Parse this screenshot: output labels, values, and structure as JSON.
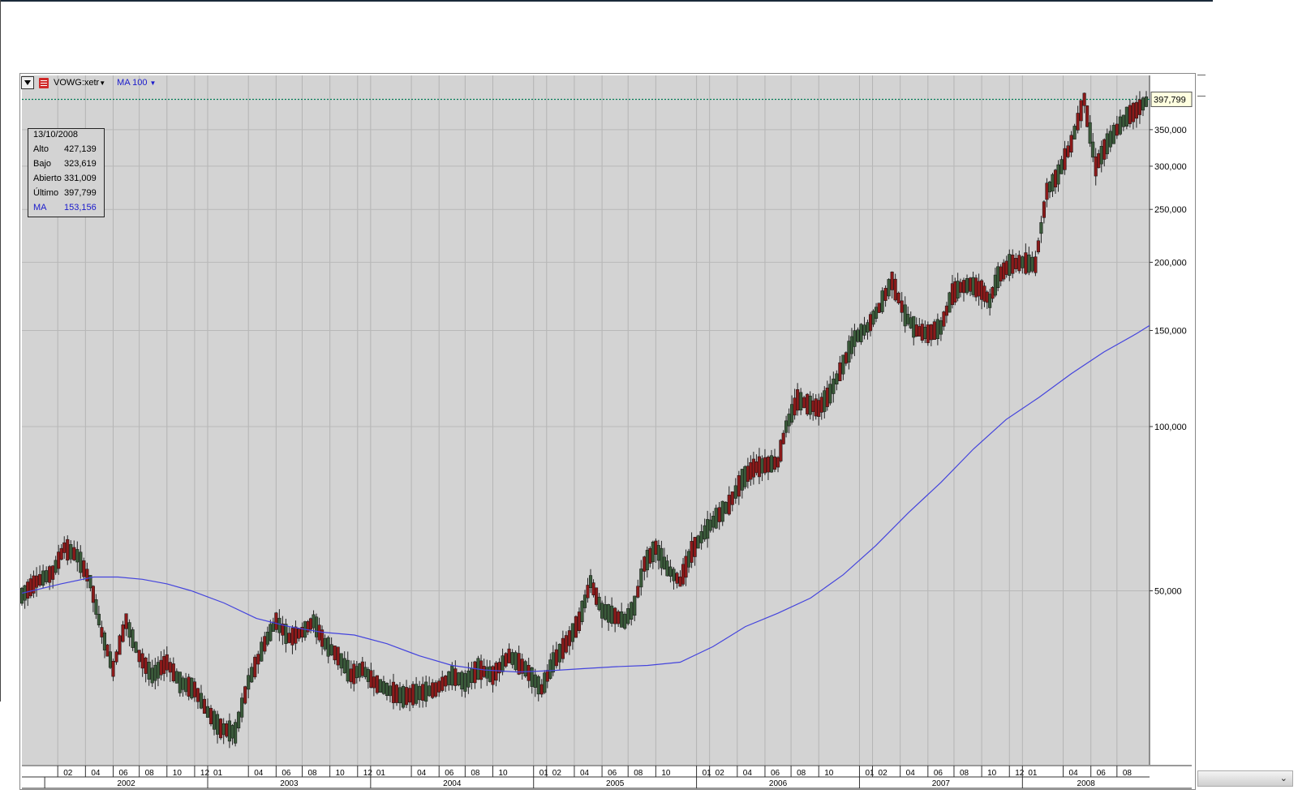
{
  "toolbar": {
    "ticker": "VOWG:xetr",
    "indicator": "MA 100",
    "dropdown_icon": "chevron-down-icon",
    "doc_icon": "document-icon"
  },
  "info": {
    "date": "13/10/2008",
    "rows": [
      {
        "label": "Alto",
        "value": "427,139"
      },
      {
        "label": "Bajo",
        "value": "323,619"
      },
      {
        "label": "Abierto",
        "value": "331,009"
      },
      {
        "label": "Último",
        "value": "397,799"
      },
      {
        "label": "MA",
        "value": "153,156"
      }
    ]
  },
  "colors": {
    "plot_bg": "#d3d3d3",
    "up_candle": "#2d4d2d",
    "down_candle": "#8b1a1a",
    "ma_line": "#4444dd",
    "last_line": "#007a55"
  },
  "chart_data": {
    "type": "line",
    "yscale": "log",
    "ylim": [
      24000,
      440000
    ],
    "y_ticks": [
      "50,000",
      "100,000",
      "150,000",
      "200,000",
      "250,000",
      "300,000",
      "350,000"
    ],
    "y_tick_values": [
      50000,
      100000,
      150000,
      200000,
      250000,
      300000,
      350000
    ],
    "last_value_label": "397,799",
    "last_value": 397799,
    "month_ticks": [
      "02",
      "04",
      "06",
      "08",
      "10",
      "12",
      "01",
      "04",
      "06",
      "08",
      "10",
      "12",
      "01",
      "04",
      "06",
      "08",
      "10",
      "01",
      "02",
      "04",
      "06",
      "08",
      "10",
      "01",
      "02",
      "04",
      "06",
      "08",
      "10",
      "01",
      "02",
      "04",
      "06",
      "08",
      "10",
      "12",
      "01",
      "04",
      "06",
      "08"
    ],
    "month_tick_dates": [
      2002.08,
      2002.25,
      2002.42,
      2002.58,
      2002.75,
      2002.92,
      2003.0,
      2003.25,
      2003.42,
      2003.58,
      2003.75,
      2003.92,
      2004.0,
      2004.25,
      2004.42,
      2004.58,
      2004.75,
      2005.0,
      2005.08,
      2005.25,
      2005.42,
      2005.58,
      2005.75,
      2006.0,
      2006.08,
      2006.25,
      2006.42,
      2006.58,
      2006.75,
      2007.0,
      2007.08,
      2007.25,
      2007.42,
      2007.58,
      2007.75,
      2007.92,
      2008.0,
      2008.25,
      2008.42,
      2008.58
    ],
    "years": [
      "2002",
      "2003",
      "2004",
      "2005",
      "2006",
      "2007",
      "2008"
    ],
    "series": [
      {
        "name": "VOWG:xetr",
        "x": [
          2001.86,
          2001.95,
          2002.05,
          2002.12,
          2002.2,
          2002.28,
          2002.35,
          2002.42,
          2002.5,
          2002.58,
          2002.66,
          2002.75,
          2002.83,
          2002.92,
          2003.0,
          2003.08,
          2003.17,
          2003.25,
          2003.35,
          2003.42,
          2003.5,
          2003.58,
          2003.65,
          2003.72,
          2003.8,
          2003.88,
          2003.95,
          2004.02,
          2004.1,
          2004.2,
          2004.3,
          2004.4,
          2004.5,
          2004.58,
          2004.66,
          2004.75,
          2004.85,
          2004.95,
          2005.05,
          2005.12,
          2005.2,
          2005.28,
          2005.35,
          2005.42,
          2005.5,
          2005.56,
          2005.62,
          2005.68,
          2005.75,
          2005.82,
          2005.9,
          2005.97,
          2006.05,
          2006.12,
          2006.2,
          2006.28,
          2006.35,
          2006.42,
          2006.5,
          2006.55,
          2006.62,
          2006.68,
          2006.75,
          2006.82,
          2006.9,
          2006.97,
          2007.05,
          2007.12,
          2007.2,
          2007.28,
          2007.35,
          2007.42,
          2007.5,
          2007.57,
          2007.62,
          2007.68,
          2007.75,
          2007.8,
          2007.85,
          2007.92,
          2008.0,
          2008.08,
          2008.15,
          2008.22,
          2008.3,
          2008.38,
          2008.45,
          2008.52,
          2008.58,
          2008.64,
          2008.7,
          2008.74,
          2008.78
        ],
        "y": [
          49000,
          52000,
          54000,
          60000,
          58000,
          52000,
          42000,
          36000,
          44000,
          38000,
          35000,
          37000,
          34000,
          33000,
          30000,
          28000,
          27500,
          34000,
          40000,
          44000,
          41000,
          42000,
          44000,
          40000,
          38000,
          35000,
          36000,
          34000,
          33000,
          32000,
          32500,
          33000,
          35000,
          34000,
          36000,
          35000,
          38000,
          36000,
          33000,
          37000,
          40000,
          44000,
          52000,
          46000,
          45000,
          44000,
          47000,
          56000,
          60000,
          55000,
          52000,
          59000,
          64000,
          68000,
          72000,
          80000,
          84000,
          85000,
          86000,
          100000,
          112000,
          110000,
          108000,
          115000,
          130000,
          145000,
          152000,
          165000,
          185000,
          160000,
          150000,
          148000,
          152000,
          175000,
          180000,
          182000,
          178000,
          170000,
          188000,
          198000,
          200000,
          198000,
          270000,
          290000,
          330000,
          397799,
          300000,
          330000,
          350000,
          370000,
          380000,
          390000,
          397799
        ]
      },
      {
        "name": "MA 100",
        "x": [
          2001.86,
          2002.1,
          2002.3,
          2002.45,
          2002.6,
          2002.75,
          2002.9,
          2003.1,
          2003.3,
          2003.5,
          2003.7,
          2003.9,
          2004.1,
          2004.3,
          2004.5,
          2004.7,
          2004.9,
          2005.1,
          2005.3,
          2005.5,
          2005.7,
          2005.9,
          2006.1,
          2006.3,
          2006.5,
          2006.7,
          2006.9,
          2007.1,
          2007.3,
          2007.5,
          2007.7,
          2007.9,
          2008.1,
          2008.3,
          2008.5,
          2008.7,
          2008.78
        ],
        "y": [
          49500,
          51500,
          53000,
          53000,
          52500,
          51500,
          50000,
          47500,
          44500,
          43000,
          42000,
          41500,
          40000,
          38000,
          36500,
          35800,
          35500,
          35700,
          36000,
          36300,
          36500,
          37000,
          39500,
          43000,
          45500,
          48500,
          53500,
          60500,
          69500,
          79000,
          91000,
          103000,
          113000,
          125000,
          137000,
          148000,
          153156
        ]
      }
    ]
  }
}
